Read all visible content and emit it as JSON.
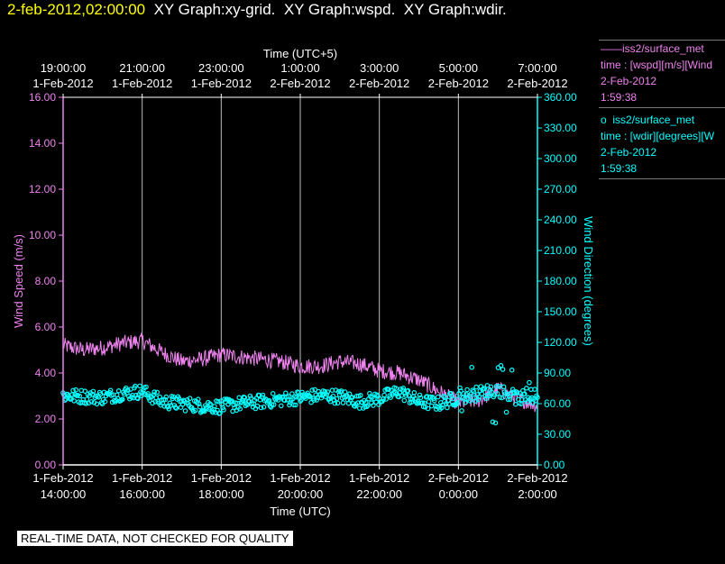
{
  "header": {
    "timestamp": "2-feb-2012,02:00:00",
    "graphs": [
      "XY Graph:xy-grid.",
      "XY Graph:wspd.",
      "XY Graph:wdir."
    ]
  },
  "legend": [
    {
      "marker": "——",
      "name": "iss2/surface_met",
      "desc": "time : [wspd][m/s][Wind",
      "date": "2-Feb-2012",
      "time": "1:59:38",
      "color": "#ee82ee"
    },
    {
      "marker": "o",
      "name": "iss2/surface_met",
      "desc": "time : [wdir][degrees][W",
      "date": "2-Feb-2012",
      "time": "1:59:38",
      "color": "#00ffff"
    }
  ],
  "disclaimer": "REAL-TIME DATA, NOT CHECKED FOR QUALITY",
  "chart_data": {
    "type": "line",
    "top_axis": {
      "title": "Time (UTC+5)",
      "ticks": [
        {
          "time": "19:00:00",
          "date": "1-Feb-2012"
        },
        {
          "time": "21:00:00",
          "date": "1-Feb-2012"
        },
        {
          "time": "23:00:00",
          "date": "1-Feb-2012"
        },
        {
          "time": "1:00:00",
          "date": "2-Feb-2012"
        },
        {
          "time": "3:00:00",
          "date": "2-Feb-2012"
        },
        {
          "time": "5:00:00",
          "date": "2-Feb-2012"
        },
        {
          "time": "7:00:00",
          "date": "2-Feb-2012"
        }
      ]
    },
    "bottom_axis": {
      "title": "Time (UTC)",
      "ticks": [
        {
          "date": "1-Feb-2012",
          "time": "14:00:00"
        },
        {
          "date": "1-Feb-2012",
          "time": "16:00:00"
        },
        {
          "date": "1-Feb-2012",
          "time": "18:00:00"
        },
        {
          "date": "1-Feb-2012",
          "time": "20:00:00"
        },
        {
          "date": "1-Feb-2012",
          "time": "22:00:00"
        },
        {
          "date": "2-Feb-2012",
          "time": "0:00:00"
        },
        {
          "date": "2-Feb-2012",
          "time": "2:00:00"
        }
      ],
      "range_hours_utc": [
        "2012-02-01 14:00",
        "2012-02-02 02:00"
      ]
    },
    "left_axis": {
      "title": "Wind Speed (m/s)",
      "ylim": [
        0,
        16
      ],
      "ticks": [
        "0.00",
        "2.00",
        "4.00",
        "6.00",
        "8.00",
        "10.00",
        "12.00",
        "14.00",
        "16.00"
      ],
      "color": "#ee82ee"
    },
    "right_axis": {
      "title": "Wind Direction (degrees)",
      "ylim": [
        0,
        360
      ],
      "ticks": [
        "0.00",
        "30.00",
        "60.00",
        "90.00",
        "120.00",
        "150.00",
        "180.00",
        "210.00",
        "240.00",
        "270.00",
        "300.00",
        "330.00",
        "360.00"
      ],
      "color": "#00ffff"
    },
    "grid": "vertical",
    "series": [
      {
        "name": "iss2/surface_met wspd",
        "style": "line",
        "color": "#ee82ee",
        "axis": "left",
        "x_hours": [
          0,
          0.5,
          1,
          1.5,
          2,
          2.5,
          3,
          3.5,
          4,
          4.5,
          5,
          5.5,
          6,
          6.5,
          7,
          7.5,
          8,
          8.5,
          9,
          9.5,
          10,
          10.5,
          11,
          11.5,
          12
        ],
        "values": [
          5.2,
          5.0,
          5.1,
          5.3,
          5.4,
          4.9,
          4.5,
          4.6,
          4.8,
          4.7,
          4.6,
          4.5,
          4.3,
          4.3,
          4.5,
          4.4,
          4.1,
          4.0,
          3.7,
          3.2,
          2.7,
          2.8,
          3.3,
          2.9,
          2.6
        ],
        "noise": 0.35
      },
      {
        "name": "iss2/surface_met wdir",
        "style": "scatter",
        "color": "#00ffff",
        "axis": "right",
        "x_hours": [
          0,
          0.5,
          1,
          1.5,
          2,
          2.5,
          3,
          3.5,
          4,
          4.5,
          5,
          5.5,
          6,
          6.5,
          7,
          7.5,
          8,
          8.5,
          9,
          9.5,
          10,
          10.5,
          11,
          11.5,
          12
        ],
        "values": [
          68,
          67,
          66,
          70,
          72,
          62,
          60,
          58,
          57,
          60,
          62,
          64,
          66,
          68,
          67,
          62,
          65,
          72,
          62,
          60,
          66,
          70,
          74,
          65,
          68
        ],
        "noise": 7
      }
    ]
  }
}
